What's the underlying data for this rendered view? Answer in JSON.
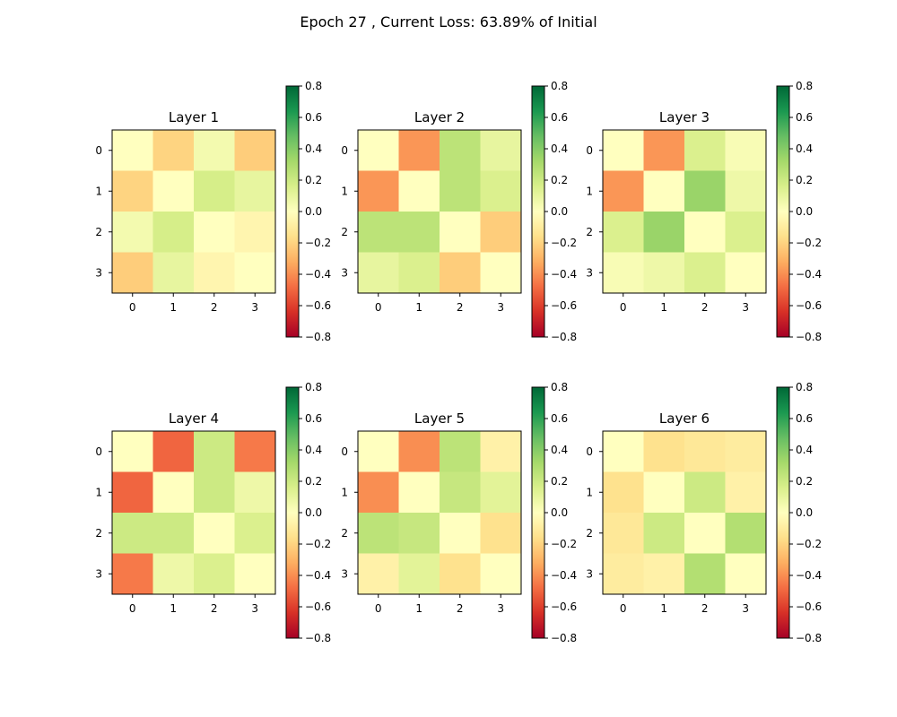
{
  "figure": {
    "title": "Epoch 27 , Current Loss: 63.89% of Initial"
  },
  "colormap": {
    "name": "RdYlGn",
    "stops": [
      "#a50026",
      "#d73027",
      "#f46d43",
      "#fdae61",
      "#fee08b",
      "#ffffbf",
      "#d9ef8b",
      "#a6d96a",
      "#66bd63",
      "#1a9850",
      "#006837"
    ]
  },
  "chart_data": [
    {
      "type": "heatmap",
      "title": "Layer 1",
      "x_ticks": [
        "0",
        "1",
        "2",
        "3"
      ],
      "y_ticks": [
        "0",
        "1",
        "2",
        "3"
      ],
      "zlim": [
        -0.8,
        0.8
      ],
      "colorbar_ticks": [
        "0.8",
        "0.6",
        "0.4",
        "0.2",
        "0.0",
        "−0.2",
        "−0.4",
        "−0.6",
        "−0.8"
      ],
      "matrix": [
        [
          0.0,
          -0.2,
          0.05,
          -0.22
        ],
        [
          -0.2,
          0.0,
          0.17,
          0.1
        ],
        [
          0.05,
          0.17,
          0.0,
          -0.05
        ],
        [
          -0.22,
          0.1,
          -0.05,
          0.0
        ]
      ]
    },
    {
      "type": "heatmap",
      "title": "Layer 2",
      "x_ticks": [
        "0",
        "1",
        "2",
        "3"
      ],
      "y_ticks": [
        "0",
        "1",
        "2",
        "3"
      ],
      "zlim": [
        -0.8,
        0.8
      ],
      "colorbar_ticks": [
        "0.8",
        "0.6",
        "0.4",
        "0.2",
        "0.0",
        "−0.2",
        "−0.4",
        "−0.6",
        "−0.8"
      ],
      "matrix": [
        [
          0.0,
          -0.38,
          0.25,
          0.1
        ],
        [
          -0.38,
          0.0,
          0.25,
          0.15
        ],
        [
          0.25,
          0.25,
          0.0,
          -0.22
        ],
        [
          0.1,
          0.15,
          -0.22,
          0.0
        ]
      ]
    },
    {
      "type": "heatmap",
      "title": "Layer 3",
      "x_ticks": [
        "0",
        "1",
        "2",
        "3"
      ],
      "y_ticks": [
        "0",
        "1",
        "2",
        "3"
      ],
      "zlim": [
        -0.8,
        0.8
      ],
      "colorbar_ticks": [
        "0.8",
        "0.6",
        "0.4",
        "0.2",
        "0.0",
        "−0.2",
        "−0.4",
        "−0.6",
        "−0.8"
      ],
      "matrix": [
        [
          0.0,
          -0.38,
          0.15,
          0.03
        ],
        [
          -0.38,
          0.0,
          0.35,
          0.07
        ],
        [
          0.15,
          0.35,
          0.0,
          0.15
        ],
        [
          0.03,
          0.07,
          0.15,
          0.0
        ]
      ]
    },
    {
      "type": "heatmap",
      "title": "Layer 4",
      "x_ticks": [
        "0",
        "1",
        "2",
        "3"
      ],
      "y_ticks": [
        "0",
        "1",
        "2",
        "3"
      ],
      "zlim": [
        -0.8,
        0.8
      ],
      "colorbar_ticks": [
        "0.8",
        "0.6",
        "0.4",
        "0.2",
        "0.0",
        "−0.2",
        "−0.4",
        "−0.6",
        "−0.8"
      ],
      "matrix": [
        [
          0.0,
          -0.5,
          0.2,
          -0.45
        ],
        [
          -0.5,
          0.0,
          0.2,
          0.07
        ],
        [
          0.2,
          0.2,
          0.0,
          0.15
        ],
        [
          -0.45,
          0.07,
          0.15,
          0.0
        ]
      ]
    },
    {
      "type": "heatmap",
      "title": "Layer 5",
      "x_ticks": [
        "0",
        "1",
        "2",
        "3"
      ],
      "y_ticks": [
        "0",
        "1",
        "2",
        "3"
      ],
      "zlim": [
        -0.8,
        0.8
      ],
      "colorbar_ticks": [
        "0.8",
        "0.6",
        "0.4",
        "0.2",
        "0.0",
        "−0.2",
        "−0.4",
        "−0.6",
        "−0.8"
      ],
      "matrix": [
        [
          0.0,
          -0.4,
          0.25,
          -0.07
        ],
        [
          -0.4,
          0.0,
          0.22,
          0.12
        ],
        [
          0.25,
          0.22,
          0.0,
          -0.15
        ],
        [
          -0.07,
          0.12,
          -0.15,
          0.0
        ]
      ]
    },
    {
      "type": "heatmap",
      "title": "Layer 6",
      "x_ticks": [
        "0",
        "1",
        "2",
        "3"
      ],
      "y_ticks": [
        "0",
        "1",
        "2",
        "3"
      ],
      "zlim": [
        -0.8,
        0.8
      ],
      "colorbar_ticks": [
        "0.8",
        "0.6",
        "0.4",
        "0.2",
        "0.0",
        "−0.2",
        "−0.4",
        "−0.6",
        "−0.8"
      ],
      "matrix": [
        [
          0.0,
          -0.15,
          -0.12,
          -0.1
        ],
        [
          -0.15,
          0.0,
          0.2,
          -0.07
        ],
        [
          -0.12,
          0.2,
          0.0,
          0.28
        ],
        [
          -0.1,
          -0.07,
          0.28,
          0.0
        ]
      ]
    }
  ]
}
